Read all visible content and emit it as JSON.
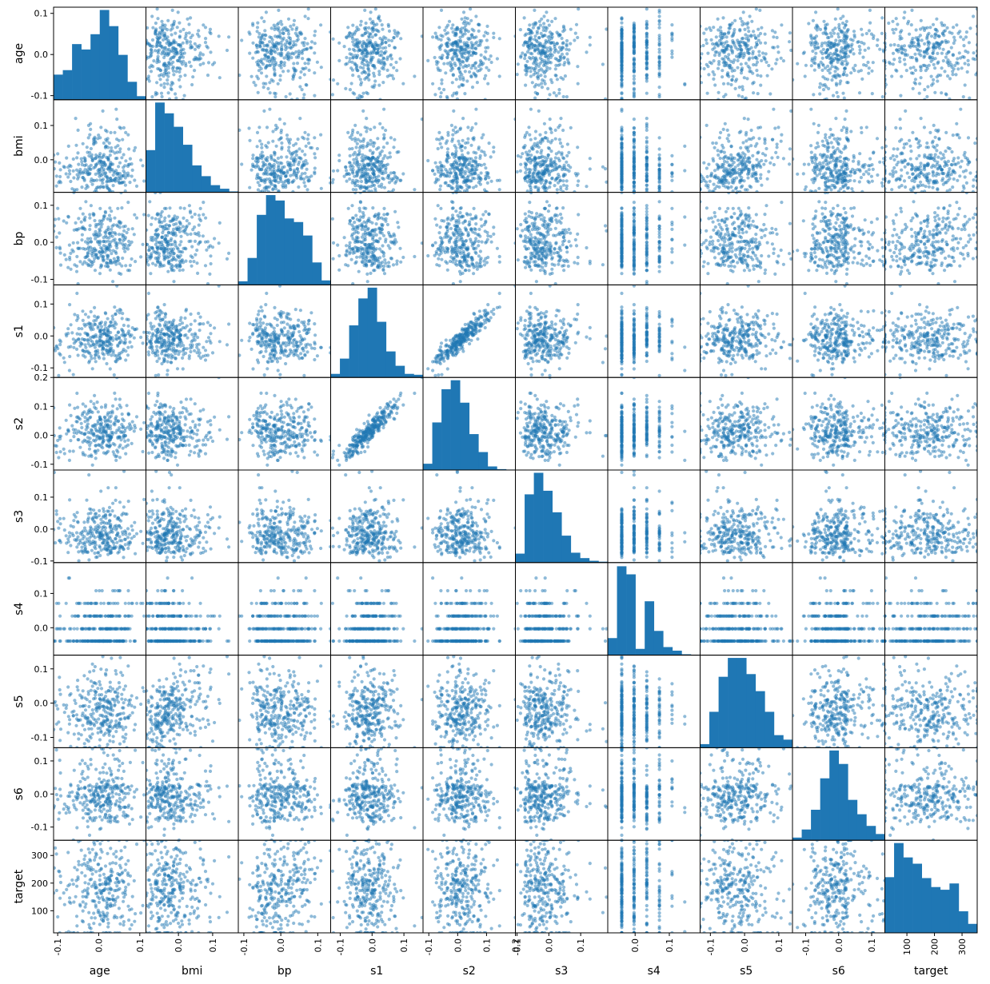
{
  "chart_data": {
    "type": "scatter",
    "title": "",
    "variables": [
      "age",
      "bmi",
      "bp",
      "s1",
      "s2",
      "s3",
      "s4",
      "s5",
      "s6",
      "target"
    ],
    "diagonal": "hist",
    "hist_bins": 10,
    "marker_color": "#1f77b4",
    "marker_alpha": 0.5,
    "axis_ranges": {
      "age": [
        -0.11,
        0.115
      ],
      "bmi": [
        -0.095,
        0.175
      ],
      "bp": [
        -0.115,
        0.135
      ],
      "s1": [
        -0.13,
        0.16
      ],
      "s2": [
        -0.12,
        0.2
      ],
      "s3": [
        -0.105,
        0.185
      ],
      "s4": [
        -0.08,
        0.19
      ],
      "s5": [
        -0.13,
        0.14
      ],
      "s6": [
        -0.14,
        0.14
      ],
      "target": [
        20,
        355
      ]
    },
    "tick_labels": {
      "age": [
        "-0.1",
        "0.0",
        "0.1"
      ],
      "bmi": [
        "0.0",
        "0.1"
      ],
      "bp": [
        "-0.1",
        "0.0",
        "0.1"
      ],
      "s1": [
        "-0.1",
        "0.0",
        "0.1"
      ],
      "s2": [
        "-0.1",
        "0.0",
        "0.1",
        "0.2"
      ],
      "s3": [
        "-0.1",
        "0.0",
        "0.1"
      ],
      "s4": [
        "0.0",
        "0.1"
      ],
      "s5": [
        "-0.1",
        "0.0",
        "0.1"
      ],
      "s6": [
        "-0.1",
        "0.0",
        "0.1"
      ],
      "target": [
        "100",
        "200",
        "300"
      ]
    },
    "tick_values": {
      "age": [
        -0.1,
        0.0,
        0.1
      ],
      "bmi": [
        0.0,
        0.1
      ],
      "bp": [
        -0.1,
        0.0,
        0.1
      ],
      "s1": [
        -0.1,
        0.0,
        0.1
      ],
      "s2": [
        -0.1,
        0.0,
        0.1,
        0.2
      ],
      "s3": [
        -0.1,
        0.0,
        0.1
      ],
      "s4": [
        0.0,
        0.1
      ],
      "s5": [
        -0.1,
        0.0,
        0.1
      ],
      "s6": [
        -0.1,
        0.0,
        0.1
      ],
      "target": [
        100,
        200,
        300
      ]
    },
    "histograms": {
      "age": [
        0.28,
        0.33,
        0.62,
        0.56,
        0.73,
        1.0,
        0.82,
        0.5,
        0.2,
        0.04
      ],
      "bmi": [
        0.47,
        1.0,
        0.88,
        0.73,
        0.53,
        0.3,
        0.18,
        0.08,
        0.04,
        0.01
      ],
      "bp": [
        0.04,
        0.3,
        0.78,
        1.0,
        0.94,
        0.74,
        0.7,
        0.55,
        0.25,
        0.05
      ],
      "s1": [
        0.04,
        0.21,
        0.58,
        0.88,
        1.0,
        0.62,
        0.29,
        0.13,
        0.04,
        0.03
      ],
      "s2": [
        0.07,
        0.53,
        0.9,
        1.0,
        0.75,
        0.4,
        0.2,
        0.04,
        0.01,
        0.005
      ],
      "s3": [
        0.1,
        0.76,
        1.0,
        0.8,
        0.56,
        0.3,
        0.11,
        0.05,
        0.02,
        0.01
      ],
      "s4": [
        0.19,
        0.99,
        0.9,
        0.07,
        0.6,
        0.27,
        0.09,
        0.05,
        0.01,
        0.005
      ],
      "s5": [
        0.04,
        0.4,
        0.79,
        1.0,
        1.0,
        0.82,
        0.63,
        0.4,
        0.14,
        0.09
      ],
      "s6": [
        0.03,
        0.12,
        0.34,
        0.69,
        1.0,
        0.85,
        0.45,
        0.29,
        0.16,
        0.07
      ],
      "target": [
        0.62,
        1.0,
        0.84,
        0.77,
        0.61,
        0.51,
        0.48,
        0.55,
        0.24,
        0.1
      ]
    },
    "relations": [
      {
        "pair": [
          "s1",
          "s2"
        ],
        "slope": 0.95,
        "noise": 0.015
      },
      {
        "pair": [
          "s3",
          "s4"
        ],
        "slope": -0.7,
        "noise": 0.03
      },
      {
        "pair": [
          "bmi",
          "target"
        ],
        "slope": 0.55,
        "noise": 0.06
      },
      {
        "pair": [
          "s5",
          "target"
        ],
        "slope": 0.5,
        "noise": 0.06
      },
      {
        "pair": [
          "bmi",
          "s5"
        ],
        "slope": 0.45,
        "noise": 0.05
      },
      {
        "pair": [
          "bp",
          "target"
        ],
        "slope": 0.4,
        "noise": 0.07
      }
    ]
  }
}
